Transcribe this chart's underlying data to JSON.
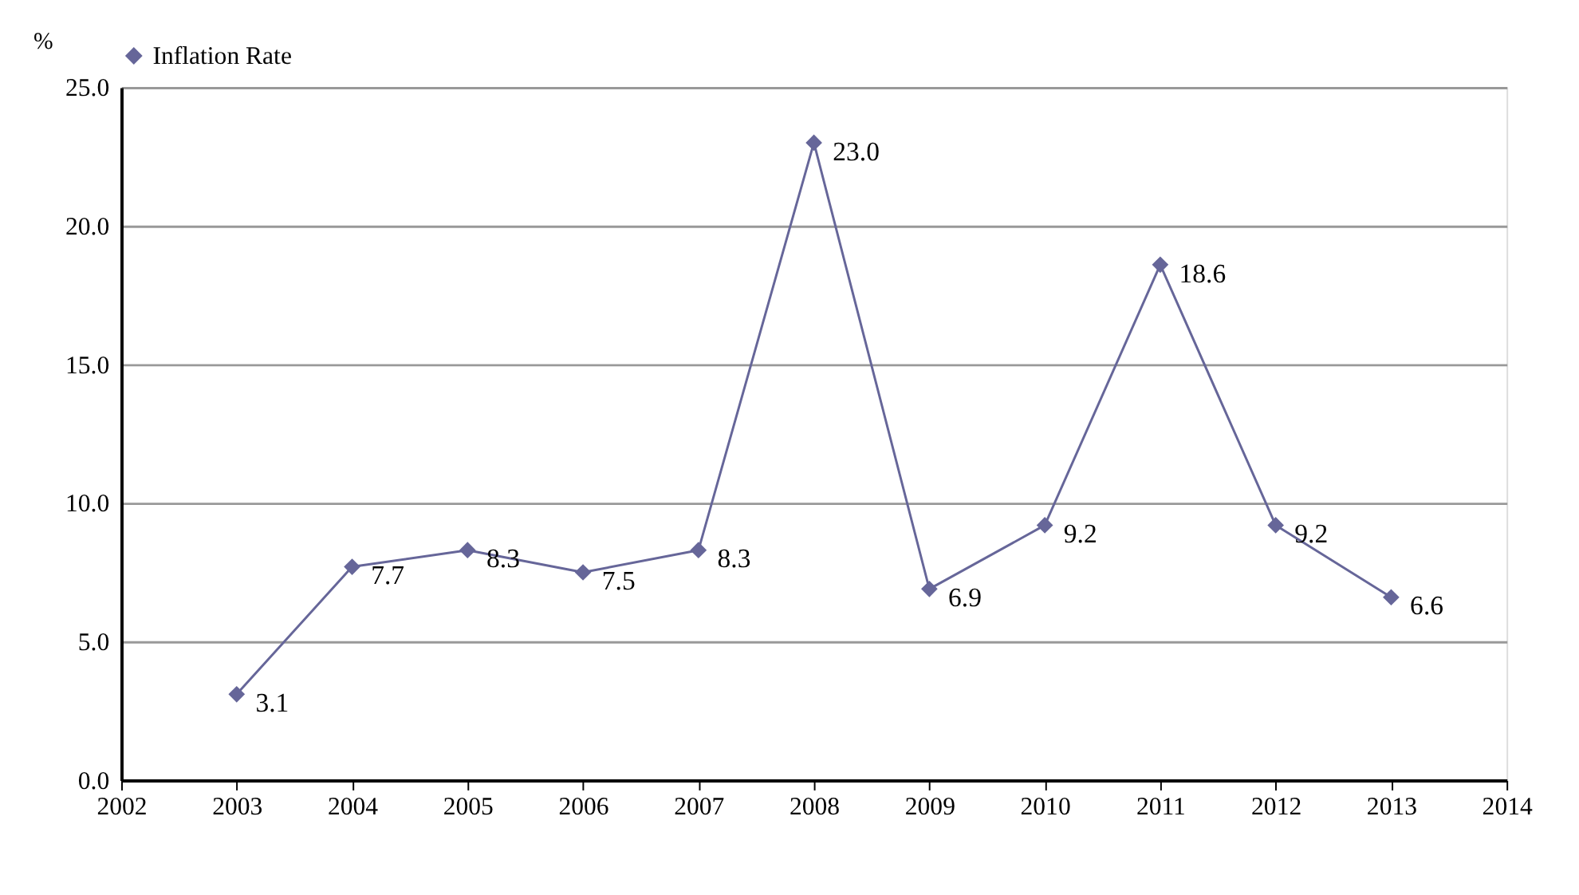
{
  "chart_data": {
    "type": "line",
    "ylabel": "%",
    "x": [
      2003,
      2004,
      2005,
      2006,
      2007,
      2008,
      2009,
      2010,
      2011,
      2012,
      2013
    ],
    "series": [
      {
        "name": "Inflation Rate",
        "color": "#666699",
        "values": [
          3.1,
          7.7,
          8.3,
          7.5,
          8.3,
          23.0,
          6.9,
          9.2,
          18.6,
          9.2,
          6.6
        ],
        "value_labels": [
          "3.1",
          "7.7",
          "8.3",
          "7.5",
          "8.3",
          "23.0",
          "6.9",
          "9.2",
          "18.6",
          "9.2",
          "6.6"
        ]
      }
    ],
    "xlim": [
      2002,
      2014
    ],
    "xticks": [
      2002,
      2003,
      2004,
      2005,
      2006,
      2007,
      2008,
      2009,
      2010,
      2011,
      2012,
      2013,
      2014
    ],
    "ylim": [
      0,
      25
    ],
    "yticks": [
      {
        "value": 0,
        "label": "0.0"
      },
      {
        "value": 5,
        "label": "5.0"
      },
      {
        "value": 10,
        "label": "10.0"
      },
      {
        "value": 15,
        "label": "15.0"
      },
      {
        "value": 20,
        "label": "20.0"
      },
      {
        "value": 25,
        "label": "25.0"
      }
    ],
    "grid": "y",
    "legend": "top",
    "marker": "diamond",
    "line_style": "solid"
  }
}
